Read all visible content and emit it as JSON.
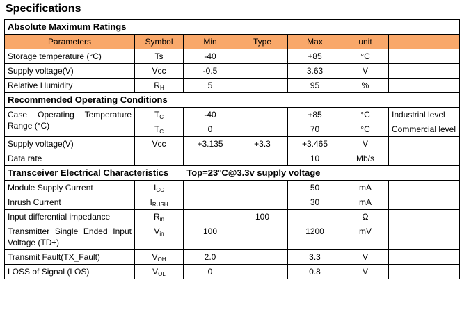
{
  "title": "Specifications",
  "sections": [
    {
      "title": "Absolute Maximum Ratings",
      "header": [
        "Parameters",
        "Symbol",
        "Min",
        "Type",
        "Max",
        "unit"
      ],
      "rows": [
        {
          "cells": [
            "Storage temperature (°C)",
            "Ts",
            "-40",
            null,
            "+85",
            "°C",
            null
          ]
        },
        {
          "cells": [
            "Supply voltage(V)",
            "Vcc",
            "-0.5",
            null,
            "3.63",
            "V",
            null
          ]
        },
        {
          "cells": [
            "Relative Humidity",
            {
              "text": "R",
              "sub": "H"
            },
            "5",
            null,
            "95",
            "%",
            null
          ]
        }
      ]
    },
    {
      "title": "Recommended Operating Conditions",
      "rows": [
        {
          "parameter": "Case Operating Temperature Range (°C)",
          "subrows": [
            [
              {
                "text": "T",
                "sub": "C"
              },
              "-40",
              null,
              "+85",
              "°C",
              "Industrial level"
            ],
            [
              {
                "text": "T",
                "sub": "C"
              },
              "0",
              null,
              "70",
              "°C",
              "Commercial level"
            ]
          ]
        },
        {
          "cells": [
            "Supply voltage(V)",
            "Vcc",
            "+3.135",
            "+3.3",
            "+3.465",
            "V",
            null
          ]
        },
        {
          "cells": [
            "Data rate",
            null,
            null,
            null,
            "10",
            "Mb/s",
            null
          ]
        }
      ]
    },
    {
      "title": "Transceiver Electrical Characteristics",
      "note": "Top=23°C@3.3v supply voltage",
      "rows": [
        {
          "cells": [
            "Module Supply Current",
            {
              "text": "I",
              "sub": "CC"
            },
            null,
            null,
            "50",
            "mA",
            null
          ]
        },
        {
          "cells": [
            "Inrush Current",
            {
              "text": "I",
              "sub": "RUSH"
            },
            null,
            null,
            "30",
            "mA",
            null
          ]
        },
        {
          "cells": [
            "Input differential impedance",
            {
              "text": "R",
              "sub": "in"
            },
            null,
            "100",
            null,
            "Ω",
            null
          ]
        },
        {
          "cells": [
            "Transmitter Single Ended Input Voltage (TD±)",
            {
              "text": "V",
              "sub": "in"
            },
            "100",
            null,
            "1200",
            "mV",
            null
          ]
        },
        {
          "cells": [
            "Transmit Fault(TX_Fault)",
            {
              "text": "V",
              "sub": "OH"
            },
            "2.0",
            null,
            "3.3",
            "V",
            null
          ]
        },
        {
          "cells": [
            "LOSS of Signal (LOS)",
            {
              "text": "V",
              "sub": "OL"
            },
            "0",
            null,
            "0.8",
            "V",
            null
          ]
        }
      ]
    }
  ]
}
